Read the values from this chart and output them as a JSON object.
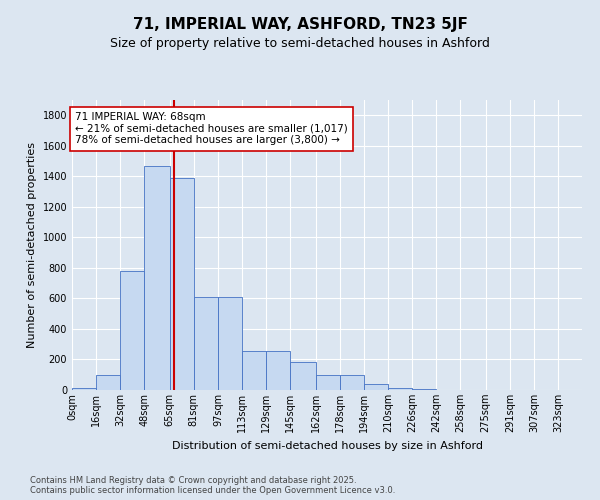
{
  "title": "71, IMPERIAL WAY, ASHFORD, TN23 5JF",
  "subtitle": "Size of property relative to semi-detached houses in Ashford",
  "xlabel": "Distribution of semi-detached houses by size in Ashford",
  "ylabel": "Number of semi-detached properties",
  "bin_labels": [
    "0sqm",
    "16sqm",
    "32sqm",
    "48sqm",
    "65sqm",
    "81sqm",
    "97sqm",
    "113sqm",
    "129sqm",
    "145sqm",
    "162sqm",
    "178sqm",
    "194sqm",
    "210sqm",
    "226sqm",
    "242sqm",
    "258sqm",
    "275sqm",
    "291sqm",
    "307sqm",
    "323sqm"
  ],
  "bar_heights": [
    10,
    100,
    780,
    1470,
    1390,
    610,
    610,
    255,
    255,
    185,
    100,
    100,
    40,
    10,
    5,
    3,
    2,
    1,
    1,
    0,
    0
  ],
  "bin_edges": [
    0,
    16,
    32,
    48,
    65,
    81,
    97,
    113,
    129,
    145,
    162,
    178,
    194,
    210,
    226,
    242,
    258,
    275,
    291,
    307,
    323,
    339
  ],
  "bar_color": "#c6d9f1",
  "bar_edge_color": "#4472c4",
  "property_size": 68,
  "vline_color": "#cc0000",
  "annotation_text": "71 IMPERIAL WAY: 68sqm\n← 21% of semi-detached houses are smaller (1,017)\n78% of semi-detached houses are larger (3,800) →",
  "annotation_box_color": "#ffffff",
  "annotation_box_edge": "#cc0000",
  "ylim": [
    0,
    1900
  ],
  "yticks": [
    0,
    200,
    400,
    600,
    800,
    1000,
    1200,
    1400,
    1600,
    1800
  ],
  "background_color": "#dce6f1",
  "grid_color": "#ffffff",
  "footer_text": "Contains HM Land Registry data © Crown copyright and database right 2025.\nContains public sector information licensed under the Open Government Licence v3.0.",
  "title_fontsize": 11,
  "subtitle_fontsize": 9,
  "axis_label_fontsize": 8,
  "tick_fontsize": 7,
  "footer_fontsize": 6
}
